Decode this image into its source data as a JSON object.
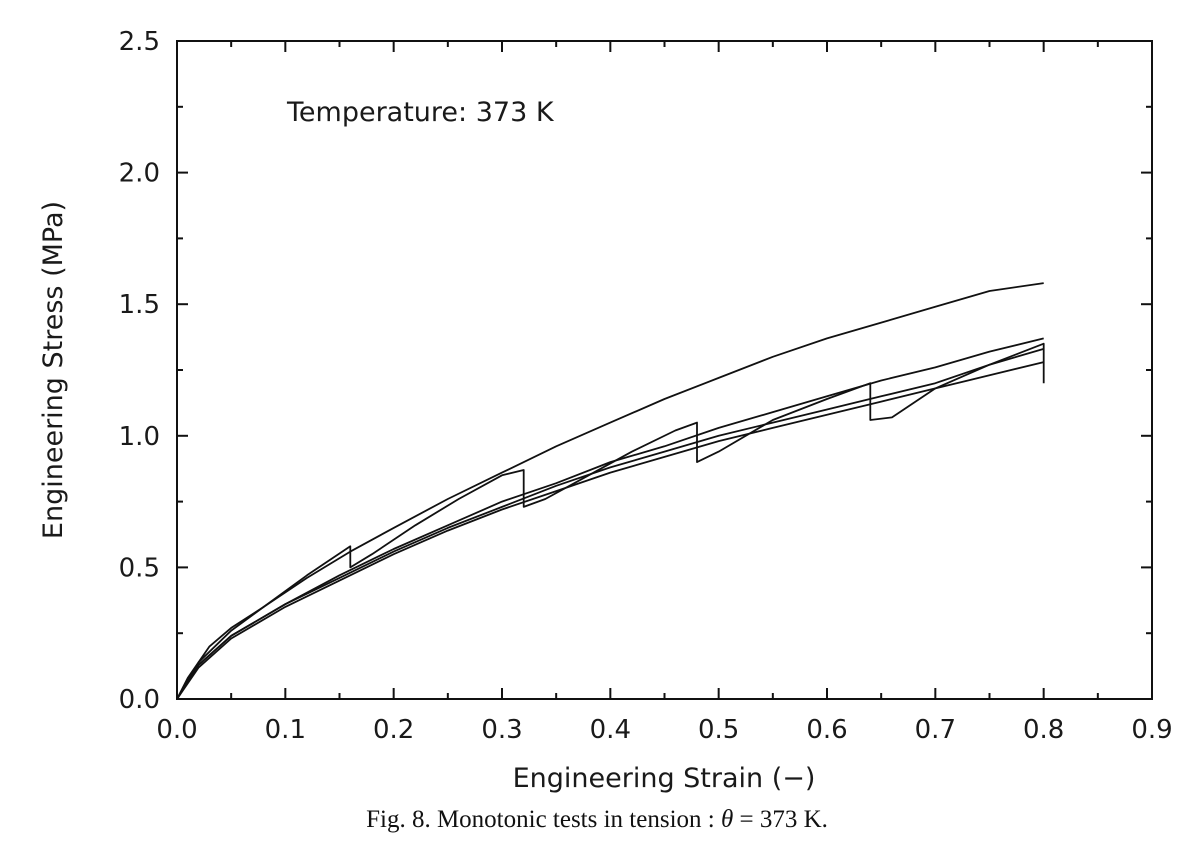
{
  "chart_data": {
    "type": "line",
    "title": "",
    "xlabel": "Engineering Strain (−)",
    "ylabel": "Engineering Stress (MPa)",
    "xlim": [
      0.0,
      0.9
    ],
    "ylim": [
      0.0,
      2.5
    ],
    "xticks": [
      "0.0",
      "0.1",
      "0.2",
      "0.3",
      "0.4",
      "0.5",
      "0.6",
      "0.7",
      "0.8",
      "0.9"
    ],
    "yticks": [
      "0.0",
      "0.5",
      "1.0",
      "1.5",
      "2.0",
      "2.5"
    ],
    "grid": false,
    "annotation": "Temperature: 373 K",
    "series": [
      {
        "x": [
          0.0,
          0.01,
          0.03,
          0.05,
          0.08,
          0.12,
          0.16,
          0.2,
          0.25,
          0.3,
          0.35,
          0.4,
          0.45,
          0.5,
          0.55,
          0.6,
          0.65,
          0.7,
          0.75,
          0.8
        ],
        "y": [
          0.0,
          0.08,
          0.2,
          0.27,
          0.35,
          0.46,
          0.56,
          0.65,
          0.76,
          0.86,
          0.96,
          1.05,
          1.14,
          1.22,
          1.3,
          1.37,
          1.43,
          1.49,
          1.55,
          1.58
        ]
      },
      {
        "x": [
          0.0,
          0.02,
          0.05,
          0.08,
          0.12,
          0.16,
          0.16,
          0.18,
          0.22,
          0.26,
          0.3,
          0.32,
          0.32,
          0.34,
          0.38,
          0.42,
          0.46,
          0.48,
          0.48,
          0.5,
          0.55,
          0.6,
          0.64,
          0.64,
          0.66,
          0.7,
          0.75,
          0.8,
          0.8
        ],
        "y": [
          0.0,
          0.14,
          0.26,
          0.35,
          0.47,
          0.58,
          0.5,
          0.55,
          0.66,
          0.76,
          0.85,
          0.87,
          0.73,
          0.76,
          0.85,
          0.94,
          1.02,
          1.05,
          0.9,
          0.94,
          1.06,
          1.14,
          1.2,
          1.06,
          1.07,
          1.18,
          1.27,
          1.35,
          1.2
        ]
      },
      {
        "x": [
          0.0,
          0.02,
          0.05,
          0.1,
          0.15,
          0.2,
          0.25,
          0.3,
          0.35,
          0.4,
          0.45,
          0.5,
          0.55,
          0.6,
          0.65,
          0.7,
          0.75,
          0.8
        ],
        "y": [
          0.0,
          0.13,
          0.24,
          0.36,
          0.47,
          0.57,
          0.66,
          0.75,
          0.82,
          0.9,
          0.96,
          1.03,
          1.09,
          1.15,
          1.21,
          1.26,
          1.32,
          1.37
        ]
      },
      {
        "x": [
          0.0,
          0.02,
          0.05,
          0.1,
          0.15,
          0.2,
          0.25,
          0.3,
          0.35,
          0.4,
          0.45,
          0.5,
          0.55,
          0.6,
          0.65,
          0.7,
          0.75,
          0.8
        ],
        "y": [
          0.0,
          0.13,
          0.24,
          0.36,
          0.46,
          0.56,
          0.65,
          0.73,
          0.81,
          0.88,
          0.94,
          1.0,
          1.05,
          1.1,
          1.15,
          1.2,
          1.27,
          1.33
        ]
      },
      {
        "x": [
          0.0,
          0.02,
          0.05,
          0.1,
          0.15,
          0.2,
          0.25,
          0.3,
          0.35,
          0.4,
          0.45,
          0.5,
          0.55,
          0.6,
          0.65,
          0.7,
          0.75,
          0.8
        ],
        "y": [
          0.0,
          0.12,
          0.23,
          0.35,
          0.45,
          0.55,
          0.64,
          0.72,
          0.79,
          0.86,
          0.92,
          0.98,
          1.03,
          1.08,
          1.13,
          1.18,
          1.23,
          1.28
        ]
      }
    ]
  },
  "caption": {
    "prefix": "Fig. 8. Monotonic tests in tension : ",
    "symbol": "θ",
    "suffix": " = 373 K."
  }
}
